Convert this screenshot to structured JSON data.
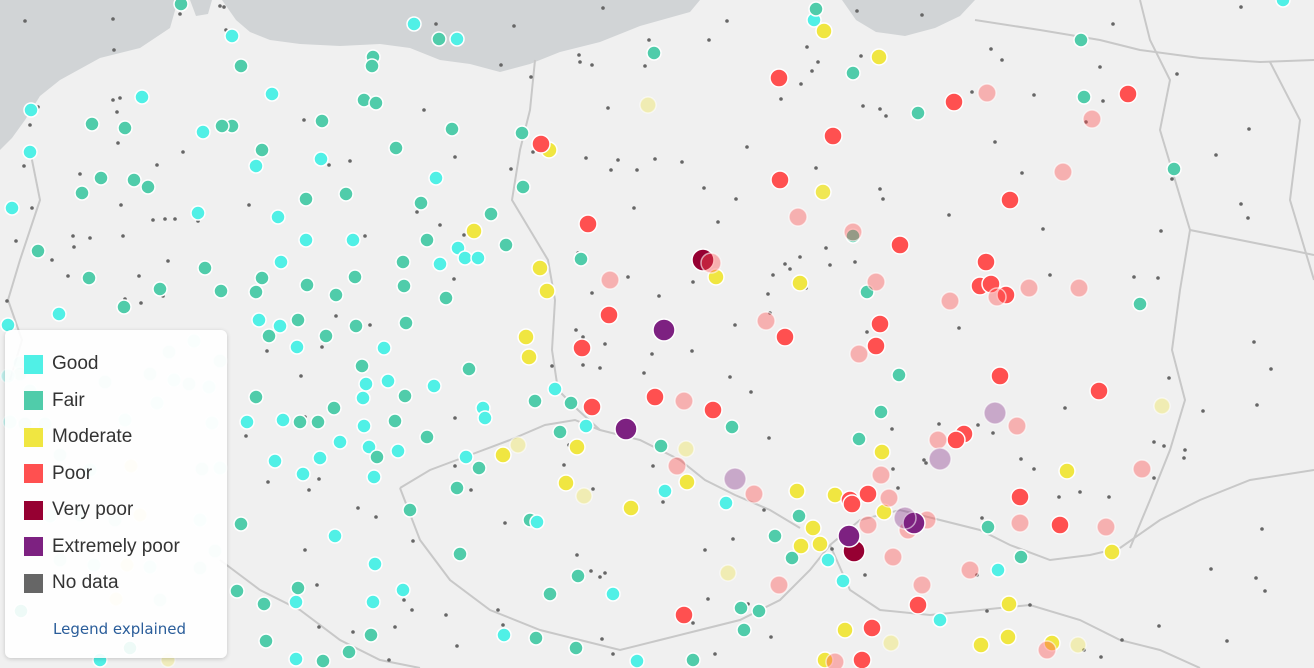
{
  "colors": {
    "land": "#f0f0f0",
    "sea": "#d1d4d6",
    "border": "#c8c8c8",
    "good": "#50f0e6",
    "fair": "#50ccaa",
    "moderate": "#f0e641",
    "poor": "#ff5050",
    "very_poor": "#960032",
    "extremely_poor": "#7d2181",
    "no_data": "#666666"
  },
  "legend": {
    "items": [
      {
        "key": "good",
        "label": "Good",
        "color": "#50f0e6"
      },
      {
        "key": "fair",
        "label": "Fair",
        "color": "#50ccaa"
      },
      {
        "key": "moderate",
        "label": "Moderate",
        "color": "#f0e641"
      },
      {
        "key": "poor",
        "label": "Poor",
        "color": "#ff5050"
      },
      {
        "key": "very_poor",
        "label": "Very poor",
        "color": "#960032"
      },
      {
        "key": "extremely_poor",
        "label": "Extremely poor",
        "color": "#7d2181"
      },
      {
        "key": "no_data",
        "label": "No data",
        "color": "#666666"
      }
    ],
    "link": "Legend explained"
  }
}
